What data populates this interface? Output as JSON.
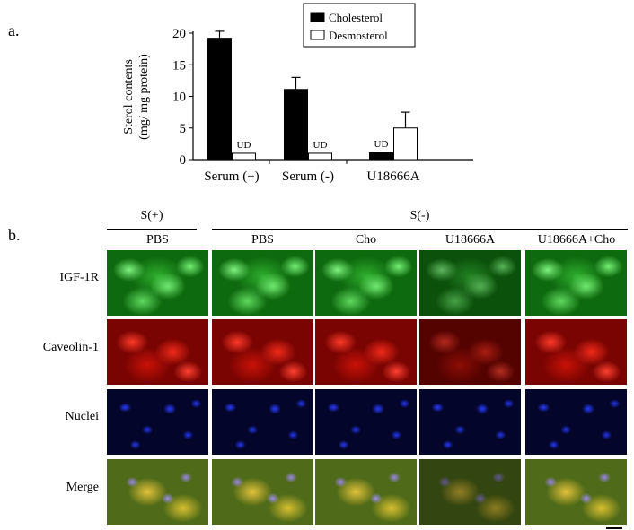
{
  "panel_a_label": "a.",
  "panel_b_label": "b.",
  "chart_data": {
    "type": "bar",
    "categories": [
      "Serum (+)",
      "Serum (-)",
      "U18666A"
    ],
    "series": [
      {
        "name": "Cholesterol",
        "values": [
          19.2,
          11.1,
          1.1
        ],
        "errors": [
          1.1,
          1.9,
          0
        ],
        "fill": "#000000"
      },
      {
        "name": "Desmosterol",
        "values": [
          1.0,
          1.0,
          5.0
        ],
        "errors": [
          0,
          0,
          2.5
        ],
        "fill": "#ffffff"
      }
    ],
    "value_labels": [
      {
        "category": "Serum (+)",
        "series": "Desmosterol",
        "text": "UD"
      },
      {
        "category": "Serum (-)",
        "series": "Desmosterol",
        "text": "UD"
      },
      {
        "category": "U18666A",
        "series": "Cholesterol",
        "text": "UD"
      }
    ],
    "ylabel_line1": "Sterol contents",
    "ylabel_line2": "(mg/ mg protein)",
    "xlabel": "",
    "title": "",
    "ylim": [
      0,
      20
    ],
    "yticks": [
      "0",
      "5",
      "10",
      "15",
      "20"
    ],
    "legend_placement": "top-right",
    "grid": false
  },
  "panel_b": {
    "group_s_plus": "S(+)",
    "group_s_minus": "S(-)",
    "columns": [
      "PBS",
      "PBS",
      "Cho",
      "U18666A",
      "U18666A+Cho"
    ],
    "rows": [
      "IGF-1R",
      "Caveolin-1",
      "Nuclei",
      "Merge"
    ]
  },
  "colors": {
    "igf_channel": "#2fae2f",
    "caveolin_channel": "#d01a0e",
    "nuclei_channel": "#2a3cff",
    "merge_overlay": "#d8c030"
  }
}
